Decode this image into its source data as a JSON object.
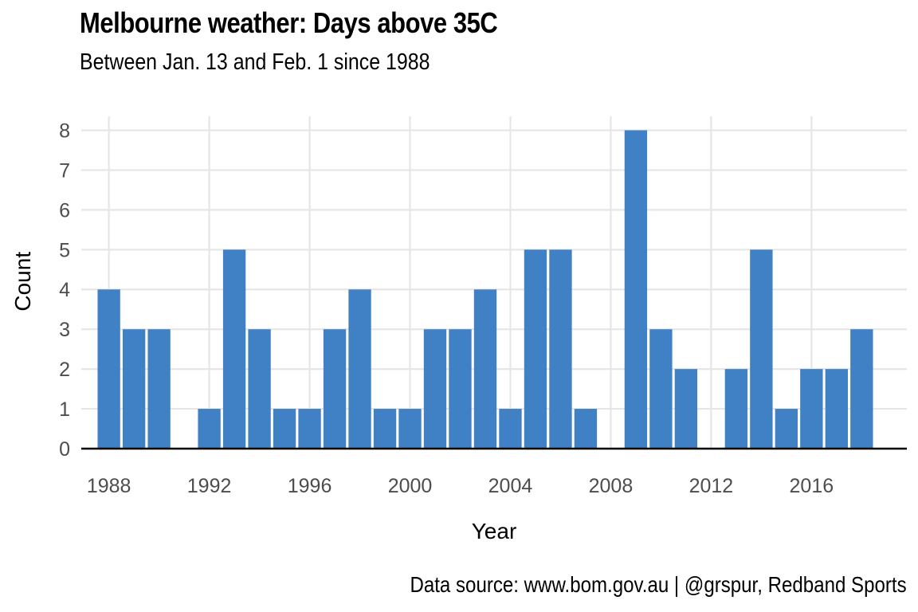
{
  "chart_data": {
    "type": "bar",
    "title": "Melbourne weather: Days above 35C",
    "subtitle": "Between Jan. 13 and Feb. 1 since 1988",
    "xlabel": "Year",
    "ylabel": "Count",
    "caption": "Data source: www.bom.gov.au | @grspur, Redband Sports",
    "x": [
      1988,
      1989,
      1990,
      1991,
      1992,
      1993,
      1994,
      1995,
      1996,
      1997,
      1998,
      1999,
      2000,
      2001,
      2002,
      2003,
      2004,
      2005,
      2006,
      2007,
      2008,
      2009,
      2010,
      2011,
      2012,
      2013,
      2014,
      2015,
      2016,
      2017,
      2018
    ],
    "values": [
      4,
      3,
      3,
      0,
      1,
      5,
      3,
      1,
      1,
      3,
      4,
      1,
      1,
      3,
      3,
      4,
      1,
      5,
      5,
      1,
      0,
      8,
      3,
      2,
      0,
      2,
      5,
      1,
      2,
      2,
      3
    ],
    "xlim": [
      1986.9,
      2019.8
    ],
    "ylim": [
      0,
      8.35
    ],
    "x_ticks": [
      1988,
      1992,
      1996,
      2000,
      2004,
      2008,
      2012,
      2016
    ],
    "y_ticks": [
      0,
      1,
      2,
      3,
      4,
      5,
      6,
      7,
      8
    ],
    "bar_color": "#4080c4",
    "grid_color": "#e6e6e6",
    "grid": true,
    "legend": "none"
  }
}
